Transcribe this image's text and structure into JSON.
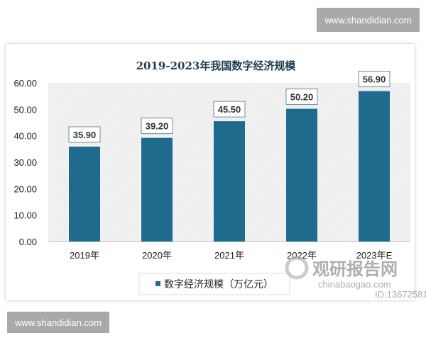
{
  "watermarks": {
    "top": "www.shandidian.com",
    "bottom": "www.shandidian.com"
  },
  "logo": {
    "name": "观研报告网",
    "domain": "chinabaogao.com",
    "id": "ID:13672581"
  },
  "chart_data": {
    "type": "bar",
    "title": "2019-2023年我国数字经济规模",
    "categories": [
      "2019年",
      "2020年",
      "2021年",
      "2022年",
      "2023年E"
    ],
    "series": [
      {
        "name": "数字经济规模（万亿元）",
        "values": [
          35.9,
          39.2,
          45.5,
          50.2,
          56.9
        ]
      }
    ],
    "data_labels": [
      "35.90",
      "39.20",
      "45.50",
      "50.20",
      "56.90"
    ],
    "yticks": [
      "0.00",
      "10.00",
      "20.00",
      "30.00",
      "40.00",
      "50.00",
      "60.00"
    ],
    "ylim": [
      0,
      60
    ],
    "xlabel": "",
    "ylabel": "",
    "bar_color": "#1f6b8e",
    "grid": false,
    "legend": "bottom"
  }
}
